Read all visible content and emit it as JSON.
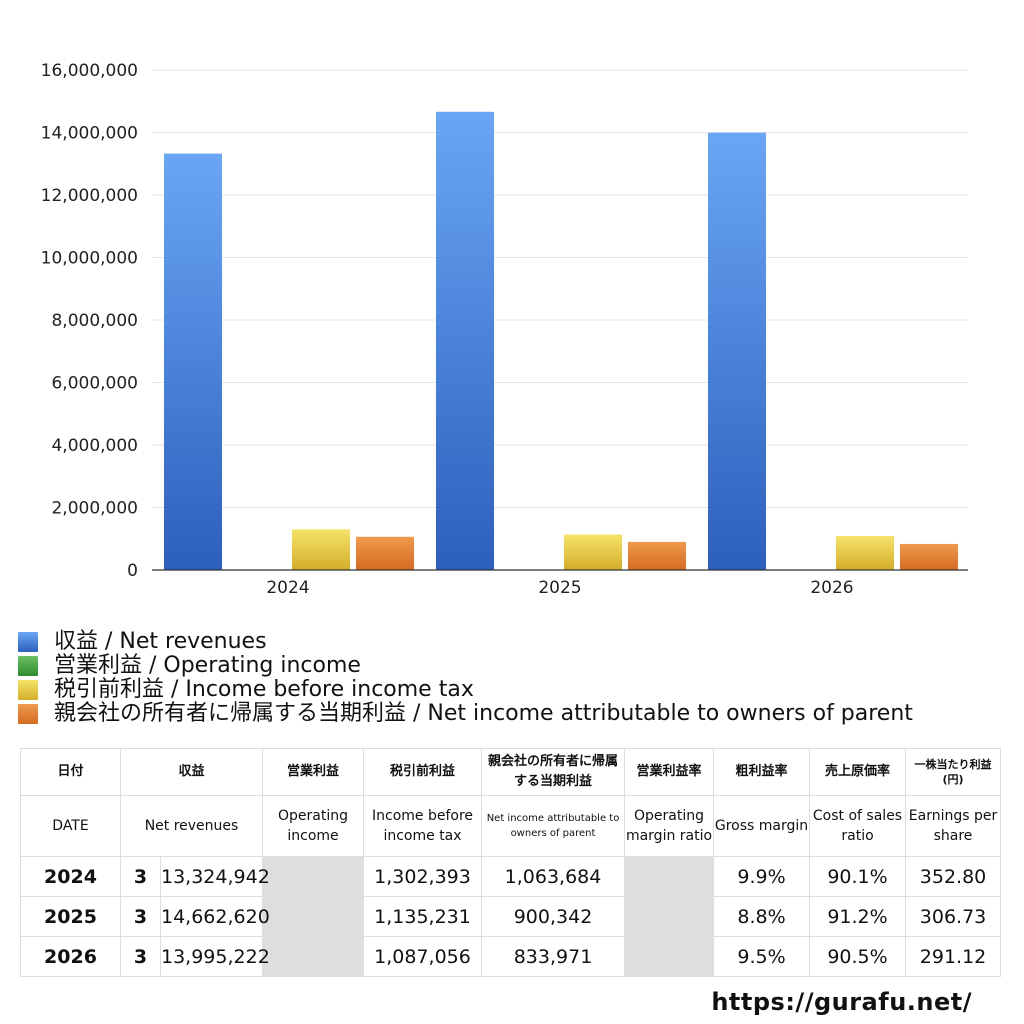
{
  "chart_data": {
    "type": "bar",
    "categories": [
      "2024",
      "2025",
      "2026"
    ],
    "series": [
      {
        "name": "収益 / Net revenues",
        "values": [
          13324942,
          14662620,
          13995222
        ],
        "color": "#4a86de"
      },
      {
        "name": "営業利益 / Operating income",
        "values": [
          null,
          null,
          null
        ],
        "color": "#4aa048"
      },
      {
        "name": "税引前利益 / Income before income tax",
        "values": [
          1302393,
          1135231,
          1087056
        ],
        "color": "#e6c93a"
      },
      {
        "name": "親会社の所有者に帰属する当期利益 / Net income attributable to owners of parent",
        "values": [
          1063684,
          900342,
          833971
        ],
        "color": "#e07e30"
      }
    ],
    "y_ticks": [
      "0",
      "2,000,000",
      "4,000,000",
      "6,000,000",
      "8,000,000",
      "10,000,000",
      "12,000,000",
      "14,000,000",
      "16,000,000"
    ],
    "ylim": [
      0,
      16000000
    ],
    "grid": true,
    "legend_placement": "bottom"
  },
  "table": {
    "headers_jp": [
      "日付",
      "収益",
      "営業利益",
      "税引前利益",
      "親会社の所有者に帰属する当期利益",
      "営業利益率",
      "粗利益率",
      "売上原価率",
      "一株当たり利益(円)"
    ],
    "headers_en": [
      "DATE",
      "Net revenues",
      "Operating income",
      "Income before income tax",
      "Net income attributable to owners of parent",
      "Operating margin ratio",
      "Gross margin",
      "Cost of sales ratio",
      "Earnings per share"
    ],
    "rows": [
      {
        "year": "2024",
        "month": "3",
        "revenue": "13,324,942",
        "operating": "",
        "pretax": "1,302,393",
        "net": "1,063,684",
        "op_margin": "",
        "gross": "9.9%",
        "cost": "90.1%",
        "eps": "352.80"
      },
      {
        "year": "2025",
        "month": "3",
        "revenue": "14,662,620",
        "operating": "",
        "pretax": "1,135,231",
        "net": "900,342",
        "op_margin": "",
        "gross": "8.8%",
        "cost": "91.2%",
        "eps": "306.73"
      },
      {
        "year": "2026",
        "month": "3",
        "revenue": "13,995,222",
        "operating": "",
        "pretax": "1,087,056",
        "net": "833,971",
        "op_margin": "",
        "gross": "9.5%",
        "cost": "90.5%",
        "eps": "291.12"
      }
    ]
  },
  "footer": {
    "url": "https://gurafu.net/"
  }
}
